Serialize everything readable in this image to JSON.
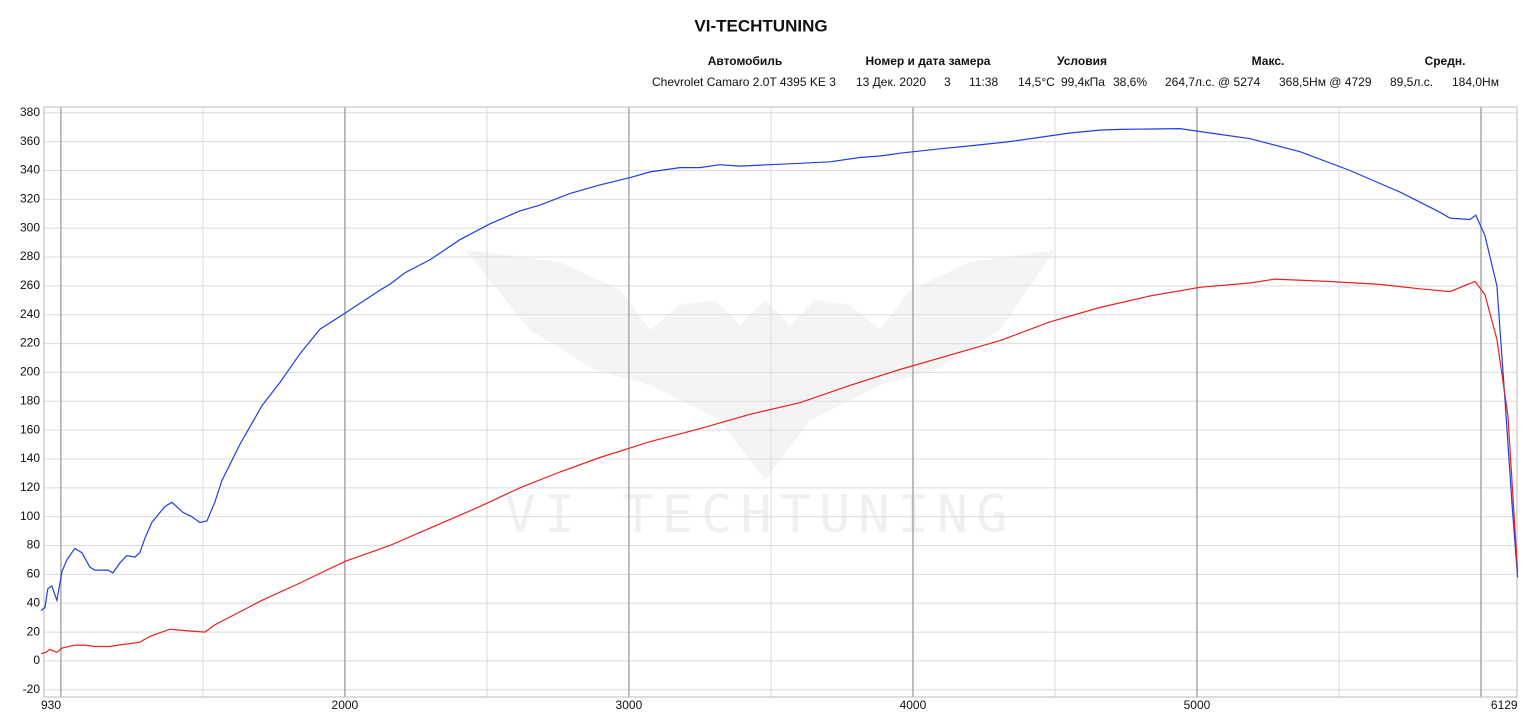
{
  "chart_data": {
    "type": "line",
    "title": "VI-TECHTUNING",
    "watermark": "VI TECHTUNING",
    "info": [
      {
        "heading": "Автомобиль",
        "values": [
          "Chevrolet Camaro 2.0T 4395 KE 3"
        ]
      },
      {
        "heading": "Номер и дата замера",
        "values": [
          "13 Дек. 2020",
          "3",
          "11:38"
        ]
      },
      {
        "heading": "Условия",
        "values": [
          "14,5°C",
          "99,4кПа",
          "38,6%"
        ]
      },
      {
        "heading": "Макс.",
        "values": [
          "264,7л.с. @ 5274",
          "368,5Нм @ 4729"
        ]
      },
      {
        "heading": "Средн.",
        "values": [
          "89,5л.с.",
          "184,0Нм"
        ]
      }
    ],
    "xlim": [
      930,
      6129
    ],
    "xticks": [
      930,
      2000,
      3000,
      4000,
      5000,
      6129
    ],
    "xgrid": [
      1000,
      1500,
      2000,
      2500,
      3000,
      3500,
      4000,
      4500,
      5000,
      5500,
      6000
    ],
    "ylim": [
      -25,
      384
    ],
    "yticks": [
      -20,
      0,
      20,
      40,
      60,
      80,
      100,
      120,
      140,
      160,
      180,
      200,
      220,
      240,
      260,
      280,
      300,
      320,
      340,
      360,
      380
    ],
    "grid": true,
    "series": [
      {
        "color": "#1f3fe0",
        "x": [
          930,
          944,
          954,
          968,
          986,
          1004,
          1021,
          1049,
          1074,
          1102,
          1120,
          1137,
          1166,
          1183,
          1208,
          1232,
          1261,
          1278,
          1296,
          1320,
          1366,
          1391,
          1430,
          1461,
          1489,
          1514,
          1542,
          1567,
          1630,
          1708,
          1771,
          1842,
          1912,
          2000,
          2123,
          2158,
          2211,
          2299,
          2405,
          2511,
          2616,
          2687,
          2792,
          2898,
          3003,
          3074,
          3180,
          3250,
          3320,
          3391,
          3496,
          3602,
          3708,
          3813,
          3884,
          3954,
          4095,
          4201,
          4341,
          4482,
          4553,
          4658,
          4729,
          4940,
          5010,
          5081,
          5187,
          5363,
          5539,
          5715,
          5856,
          5891,
          5961,
          5982,
          6014,
          6056,
          6085,
          6109,
          6129
        ],
        "values": [
          35,
          37,
          50,
          52,
          42,
          62,
          70,
          78,
          75,
          65,
          63,
          63,
          63,
          61,
          68,
          73,
          72,
          75,
          85,
          96,
          107,
          110,
          103,
          100,
          96,
          97,
          110,
          125,
          150,
          177,
          193,
          213,
          230,
          241,
          257,
          261,
          269,
          278,
          292,
          303,
          312,
          316,
          324,
          330,
          335,
          339,
          342,
          342,
          344,
          343,
          344,
          345,
          346,
          349,
          350,
          352,
          355,
          357,
          360,
          364,
          366,
          368,
          368.5,
          369,
          367,
          365,
          362,
          353,
          340,
          325,
          311,
          307,
          306,
          309,
          295,
          260,
          180,
          110,
          58
        ]
      },
      {
        "color": "#e82020",
        "x": [
          930,
          947,
          961,
          986,
          1004,
          1049,
          1085,
          1120,
          1173,
          1201,
          1243,
          1278,
          1313,
          1384,
          1437,
          1507,
          1542,
          1630,
          1708,
          1842,
          2000,
          2158,
          2299,
          2475,
          2616,
          2757,
          2898,
          3074,
          3250,
          3426,
          3602,
          3778,
          3954,
          4130,
          4306,
          4482,
          4658,
          4834,
          5010,
          5187,
          5274,
          5468,
          5644,
          5785,
          5891,
          5979,
          6014,
          6056,
          6095,
          6129
        ],
        "values": [
          5,
          6,
          8,
          6,
          9,
          11,
          11,
          10,
          10,
          11,
          12,
          13,
          17,
          22,
          21,
          20,
          25,
          34,
          42,
          54,
          69,
          80,
          92,
          107,
          120,
          131,
          141,
          152,
          161,
          171,
          179,
          191,
          202,
          212,
          222,
          235,
          245,
          253,
          259,
          262,
          264.7,
          263,
          261,
          258,
          256,
          263,
          254,
          223,
          170,
          62
        ]
      }
    ]
  }
}
